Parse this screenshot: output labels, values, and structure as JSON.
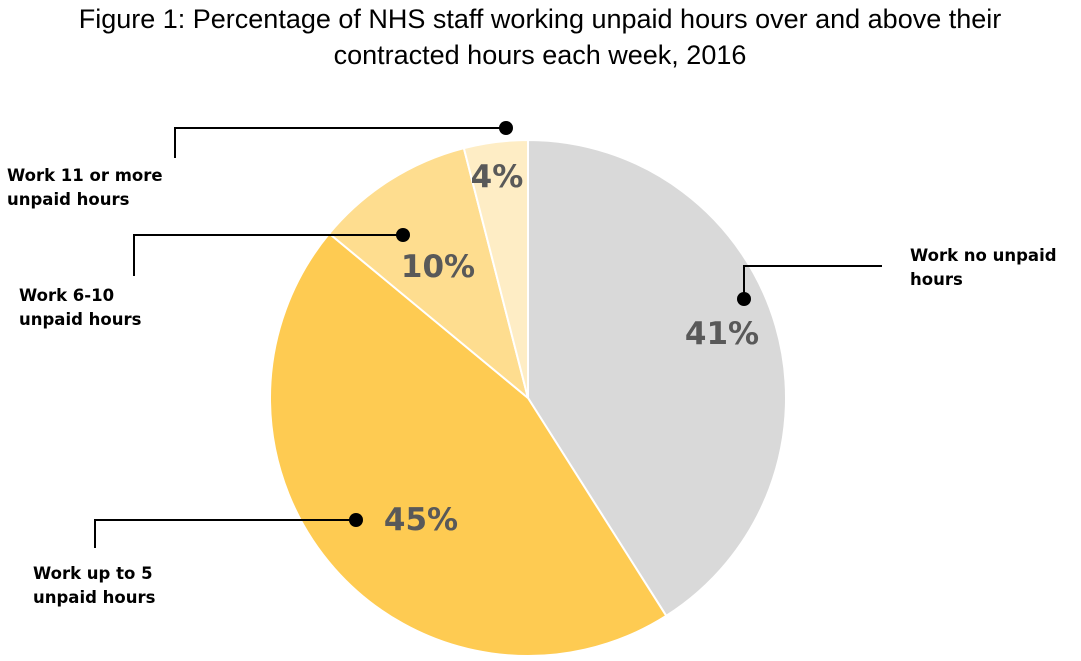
{
  "chart_data": {
    "type": "pie",
    "title": "Figure 1: Percentage of NHS staff working unpaid hours over and above their contracted hours each week, 2016",
    "title_lines": [
      "Figure 1: Percentage of NHS staff working unpaid hours over and above their",
      "contracted hours each week, 2016"
    ],
    "start": "12 o'clock",
    "direction": "clockwise",
    "legend": "none",
    "slices": [
      {
        "category": "Work no unpaid hours",
        "category_lines": [
          "Work no unpaid",
          "hours"
        ],
        "value": 41,
        "label": "41%",
        "color": "#D9D9D9"
      },
      {
        "category": "Work up to 5 unpaid hours",
        "category_lines": [
          "Work up to 5",
          "unpaid hours"
        ],
        "value": 45,
        "label": "45%",
        "color": "#FECB52"
      },
      {
        "category": "Work 6-10 unpaid hours",
        "category_lines": [
          "Work 6-10",
          "unpaid hours"
        ],
        "value": 10,
        "label": "10%",
        "color": "#FEDD8F"
      },
      {
        "category": "Work 11 or more unpaid hours",
        "category_lines": [
          "Work 11 or more",
          "unpaid hours"
        ],
        "value": 4,
        "label": "4%",
        "color": "#FEEDC5"
      }
    ]
  }
}
